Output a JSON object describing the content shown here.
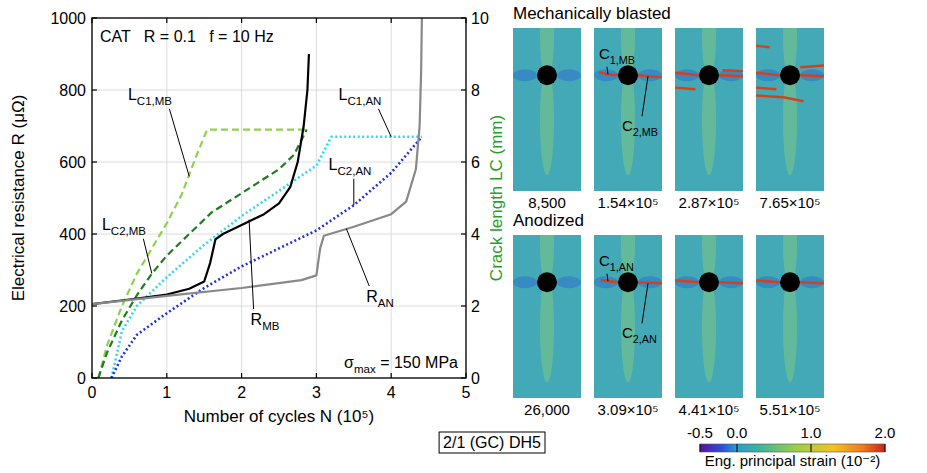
{
  "chart_data": {
    "type": "line",
    "x_label": "Number of cycles N (10⁵)",
    "y_label": "Electrical resistance R (μΩ)",
    "y2_label": "Crack length LC (mm)",
    "annotations": [
      "CAT   R = 0.1   f = 10 Hz",
      "σmax = 150 MPa",
      "2/1 (GC) DH5"
    ],
    "xlim": [
      0,
      5
    ],
    "xticks": [
      0,
      1,
      2,
      3,
      4,
      5
    ],
    "ylim": [
      0,
      1000
    ],
    "yticks": [
      0,
      200,
      400,
      600,
      800,
      1000
    ],
    "y2lim": [
      0,
      10
    ],
    "y2ticks": [
      0,
      2,
      4,
      6,
      8,
      10
    ],
    "grid": true,
    "series": [
      {
        "name": "LC1,MB",
        "color": "#8fd14f",
        "line_style": "dashed",
        "axis": "y2",
        "x": [
          0.085,
          0.2,
          0.4,
          0.6,
          0.8,
          1.0,
          1.2,
          1.4,
          1.54,
          2.87
        ],
        "values": [
          0,
          0.9,
          2.0,
          2.9,
          3.6,
          4.3,
          5.1,
          6.2,
          6.9,
          6.9
        ]
      },
      {
        "name": "LC2,MB",
        "color": "#1e7d1e",
        "line_style": "dashed",
        "axis": "y2",
        "x": [
          0.085,
          0.2,
          0.4,
          0.6,
          0.8,
          1.0,
          1.3,
          1.6,
          1.9,
          2.2,
          2.5,
          2.7,
          2.87
        ],
        "values": [
          0,
          0.7,
          1.6,
          2.3,
          2.9,
          3.4,
          4.0,
          4.6,
          5.0,
          5.4,
          5.8,
          6.2,
          6.9
        ]
      },
      {
        "name": "LC1,AN",
        "color": "#33d6f0",
        "line_style": "dotted",
        "axis": "y2",
        "x": [
          0.26,
          0.4,
          0.6,
          1.0,
          1.5,
          2.0,
          2.5,
          3.0,
          3.2,
          4.41
        ],
        "values": [
          0,
          1.3,
          2.0,
          2.8,
          3.7,
          4.5,
          5.2,
          5.9,
          6.7,
          6.7
        ]
      },
      {
        "name": "LC2,AN",
        "color": "#2233dd",
        "line_style": "dotted",
        "axis": "y2",
        "x": [
          0.26,
          0.4,
          0.6,
          1.0,
          1.5,
          2.0,
          2.5,
          3.0,
          3.5,
          4.0,
          4.41
        ],
        "values": [
          0,
          0.6,
          1.2,
          1.8,
          2.5,
          3.1,
          3.6,
          4.1,
          4.8,
          5.7,
          6.7
        ]
      },
      {
        "name": "RMB",
        "color": "#000000",
        "line_style": "solid",
        "x": [
          0,
          0.5,
          1.0,
          1.3,
          1.5,
          1.58,
          1.65,
          1.75,
          2.0,
          2.3,
          2.5,
          2.65,
          2.75,
          2.83,
          2.88,
          2.9
        ],
        "values": [
          205,
          218,
          232,
          248,
          268,
          320,
          385,
          400,
          425,
          455,
          485,
          530,
          600,
          700,
          800,
          900
        ]
      },
      {
        "name": "RAN",
        "color": "#888888",
        "line_style": "solid",
        "x": [
          0,
          1.0,
          2.0,
          2.8,
          3.0,
          3.05,
          3.1,
          3.5,
          4.0,
          4.2,
          4.33,
          4.38,
          4.4,
          4.41
        ],
        "values": [
          205,
          228,
          250,
          272,
          285,
          360,
          395,
          420,
          455,
          490,
          580,
          700,
          850,
          1000
        ]
      }
    ]
  },
  "dic_images": {
    "panels": [
      {
        "title": "Mechanically blasted",
        "crack_labels": [
          "C1,MB",
          "C2,MB"
        ],
        "cycles": [
          {
            "value": 8500,
            "label": "8,500"
          },
          {
            "value": 154000,
            "label": "1.54×10⁵"
          },
          {
            "value": 287000,
            "label": "2.87×10⁵"
          },
          {
            "value": 765000,
            "label": "7.65×10⁵"
          }
        ]
      },
      {
        "title": "Anodized",
        "crack_labels": [
          "C1,AN",
          "C2,AN"
        ],
        "cycles": [
          {
            "value": 26000,
            "label": "26,000"
          },
          {
            "value": 309000,
            "label": "3.09×10⁵"
          },
          {
            "value": 441000,
            "label": "4.41×10⁵"
          },
          {
            "value": 551000,
            "label": "5.51×10⁵"
          }
        ]
      }
    ],
    "colorbar": {
      "label": "Eng. principal strain (10⁻²)",
      "range": [
        -0.5,
        2.0
      ],
      "ticks": [
        -0.5,
        {
          "value": 0,
          "label": "0.0"
        },
        {
          "value": 1,
          "label": "1.0"
        },
        {
          "value": 2,
          "label": "2.0"
        }
      ]
    }
  }
}
